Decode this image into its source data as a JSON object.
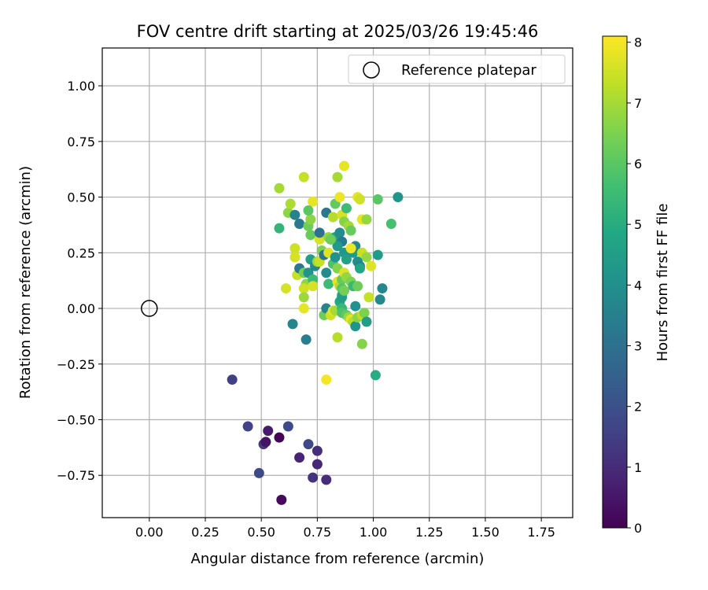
{
  "chart_data": {
    "type": "scatter",
    "title": "FOV centre drift starting at 2025/03/26 19:45:46",
    "xlabel": "Angular distance from reference (arcmin)",
    "ylabel": "Rotation from reference (arcmin)",
    "xlim": [
      -0.21,
      1.89
    ],
    "ylim": [
      -0.94,
      1.17
    ],
    "xticks": [
      "0.00",
      "0.25",
      "0.50",
      "0.75",
      "1.00",
      "1.25",
      "1.50",
      "1.75"
    ],
    "yticks": [
      "−0.75",
      "−0.50",
      "−0.25",
      "0.00",
      "0.25",
      "0.50",
      "0.75",
      "1.00"
    ],
    "grid": true,
    "legend": {
      "position": "top-right",
      "entries": [
        "Reference platepar"
      ]
    },
    "reference": {
      "x": 0.0,
      "y": 0.0,
      "label": "Reference platepar"
    },
    "colorbar": {
      "label": "Hours from first FF file",
      "range": [
        0,
        8.1
      ],
      "ticks": [
        "0",
        "1",
        "2",
        "3",
        "4",
        "5",
        "6",
        "7",
        "8"
      ],
      "colormap": "viridis"
    },
    "series": [
      {
        "points": [
          [
            0.37,
            -0.32,
            1.5
          ],
          [
            0.44,
            -0.53,
            1.6
          ],
          [
            0.51,
            -0.61,
            1.4
          ],
          [
            0.52,
            -0.6,
            0.4
          ],
          [
            0.53,
            -0.55,
            0.6
          ],
          [
            0.58,
            -0.58,
            0.1
          ],
          [
            0.62,
            -0.53,
            1.8
          ],
          [
            0.49,
            -0.74,
            1.8
          ],
          [
            0.59,
            -0.86,
            0.2
          ],
          [
            0.67,
            -0.67,
            0.8
          ],
          [
            0.71,
            -0.61,
            1.8
          ],
          [
            0.73,
            -0.76,
            1.2
          ],
          [
            0.75,
            -0.64,
            1.1
          ],
          [
            0.75,
            -0.7,
            0.9
          ],
          [
            0.79,
            -0.77,
            1.0
          ],
          [
            0.58,
            0.54,
            7.0
          ],
          [
            0.58,
            0.36,
            5.3
          ],
          [
            0.62,
            0.43,
            6.7
          ],
          [
            0.63,
            0.47,
            7.1
          ],
          [
            0.65,
            0.42,
            3.6
          ],
          [
            0.67,
            0.38,
            3.2
          ],
          [
            0.69,
            0.59,
            7.4
          ],
          [
            0.71,
            0.37,
            6.3
          ],
          [
            0.72,
            0.4,
            6.7
          ],
          [
            0.73,
            0.48,
            7.8
          ],
          [
            0.71,
            0.44,
            6.0
          ],
          [
            0.72,
            0.33,
            6.2
          ],
          [
            0.76,
            0.31,
            7.6
          ],
          [
            0.76,
            0.34,
            3.0
          ],
          [
            0.8,
            0.32,
            6.8
          ],
          [
            0.81,
            0.31,
            3.4
          ],
          [
            0.79,
            0.43,
            3.2
          ],
          [
            0.82,
            0.41,
            7.2
          ],
          [
            0.83,
            0.47,
            6.1
          ],
          [
            0.84,
            0.59,
            7.0
          ],
          [
            0.85,
            0.5,
            7.9
          ],
          [
            0.87,
            0.64,
            7.8
          ],
          [
            0.86,
            0.42,
            7.6
          ],
          [
            0.87,
            0.39,
            6.6
          ],
          [
            0.89,
            0.37,
            7.0
          ],
          [
            0.9,
            0.35,
            6.2
          ],
          [
            0.88,
            0.45,
            5.5
          ],
          [
            0.93,
            0.5,
            7.8
          ],
          [
            0.94,
            0.49,
            7.5
          ],
          [
            0.95,
            0.4,
            7.8
          ],
          [
            0.97,
            0.4,
            6.8
          ],
          [
            1.02,
            0.49,
            6.0
          ],
          [
            1.08,
            0.38,
            5.7
          ],
          [
            1.11,
            0.5,
            4.2
          ],
          [
            0.83,
            0.32,
            4.6
          ],
          [
            0.85,
            0.34,
            3.9
          ],
          [
            0.86,
            0.3,
            3.3
          ],
          [
            0.84,
            0.28,
            4.4
          ],
          [
            0.87,
            0.25,
            4.3
          ],
          [
            0.88,
            0.22,
            4.6
          ],
          [
            0.91,
            0.25,
            4.4
          ],
          [
            0.92,
            0.28,
            3.8
          ],
          [
            0.93,
            0.21,
            4.0
          ],
          [
            0.94,
            0.19,
            3.6
          ],
          [
            0.95,
            0.25,
            7.4
          ],
          [
            0.97,
            0.23,
            6.8
          ],
          [
            0.99,
            0.19,
            7.7
          ],
          [
            1.02,
            0.24,
            4.4
          ],
          [
            1.04,
            0.09,
            3.7
          ],
          [
            1.03,
            0.04,
            3.8
          ],
          [
            0.65,
            0.27,
            7.5
          ],
          [
            0.65,
            0.23,
            7.6
          ],
          [
            0.66,
            0.15,
            7.4
          ],
          [
            0.67,
            0.18,
            3.2
          ],
          [
            0.69,
            0.16,
            6.3
          ],
          [
            0.7,
            0.11,
            6.7
          ],
          [
            0.71,
            0.16,
            4.1
          ],
          [
            0.72,
            0.22,
            4.5
          ],
          [
            0.73,
            0.13,
            5.5
          ],
          [
            0.74,
            0.19,
            3.8
          ],
          [
            0.75,
            0.21,
            6.9
          ],
          [
            0.76,
            0.21,
            7.4
          ],
          [
            0.77,
            0.26,
            6.5
          ],
          [
            0.78,
            0.24,
            3.1
          ],
          [
            0.79,
            0.16,
            3.9
          ],
          [
            0.8,
            0.11,
            5.5
          ],
          [
            0.8,
            0.25,
            7.7
          ],
          [
            0.82,
            0.2,
            5.8
          ],
          [
            0.83,
            0.23,
            4.1
          ],
          [
            0.84,
            0.18,
            6.6
          ],
          [
            0.84,
            0.12,
            7.8
          ],
          [
            0.85,
            0.1,
            7.2
          ],
          [
            0.86,
            0.13,
            6.2
          ],
          [
            0.86,
            0.09,
            5.9
          ],
          [
            0.86,
            0.06,
            5.2
          ],
          [
            0.87,
            0.16,
            7.7
          ],
          [
            0.88,
            0.14,
            6.8
          ],
          [
            0.85,
            0.03,
            4.8
          ],
          [
            0.86,
            0.05,
            4.5
          ],
          [
            0.87,
            0.08,
            6.4
          ],
          [
            0.9,
            0.12,
            6.5
          ],
          [
            0.91,
            0.1,
            5.4
          ],
          [
            0.92,
            0.01,
            4.1
          ],
          [
            0.93,
            0.1,
            6.3
          ],
          [
            0.98,
            0.05,
            7.4
          ],
          [
            0.61,
            0.09,
            7.6
          ],
          [
            0.69,
            0.09,
            7.5
          ],
          [
            0.69,
            0.05,
            6.9
          ],
          [
            0.69,
            0.0,
            7.8
          ],
          [
            0.73,
            0.1,
            7.6
          ],
          [
            0.64,
            -0.07,
            3.7
          ],
          [
            0.7,
            -0.14,
            3.4
          ],
          [
            0.78,
            -0.03,
            6.3
          ],
          [
            0.79,
            0.0,
            3.6
          ],
          [
            0.81,
            -0.03,
            7.5
          ],
          [
            0.82,
            -0.01,
            7.8
          ],
          [
            0.83,
            -0.01,
            7.0
          ],
          [
            0.84,
            -0.13,
            7.2
          ],
          [
            0.86,
            0.0,
            5.4
          ],
          [
            0.86,
            -0.02,
            5.8
          ],
          [
            0.88,
            -0.03,
            6.1
          ],
          [
            0.89,
            -0.04,
            6.9
          ],
          [
            0.9,
            -0.05,
            7.8
          ],
          [
            0.91,
            -0.06,
            7.2
          ],
          [
            0.92,
            -0.08,
            4.2
          ],
          [
            0.93,
            -0.04,
            6.7
          ],
          [
            0.95,
            -0.03,
            7.3
          ],
          [
            0.95,
            -0.16,
            6.6
          ],
          [
            0.96,
            -0.02,
            6.5
          ],
          [
            0.97,
            -0.06,
            4.5
          ],
          [
            1.01,
            -0.3,
            5.0
          ],
          [
            0.79,
            -0.32,
            8.0
          ],
          [
            0.81,
            0.31,
            6.3
          ],
          [
            0.9,
            0.27,
            7.9
          ],
          [
            0.94,
            0.18,
            4.8
          ]
        ]
      }
    ]
  }
}
